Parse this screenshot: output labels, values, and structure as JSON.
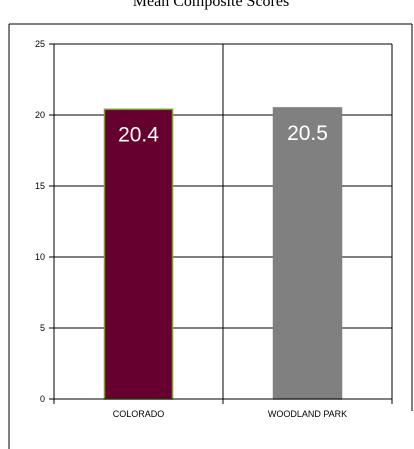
{
  "chart_data": {
    "type": "bar",
    "title": "Mean Composite Scores",
    "categories": [
      "COLORADO",
      "WOODLAND PARK"
    ],
    "values": [
      20.4,
      20.5
    ],
    "value_labels": [
      "20.4",
      "20.5"
    ],
    "colors": [
      "#66002f",
      "#808080"
    ],
    "bar_outline_colors": [
      "#7a9a2a",
      "#808080"
    ],
    "xlabel": "",
    "ylabel": "",
    "ylim": [
      0,
      25
    ],
    "yticks": [
      0,
      5,
      10,
      15,
      20,
      25
    ],
    "ytick_labels": [
      "0",
      "5",
      "10",
      "15",
      "20",
      "25"
    ],
    "grid": true,
    "legend": "none"
  }
}
